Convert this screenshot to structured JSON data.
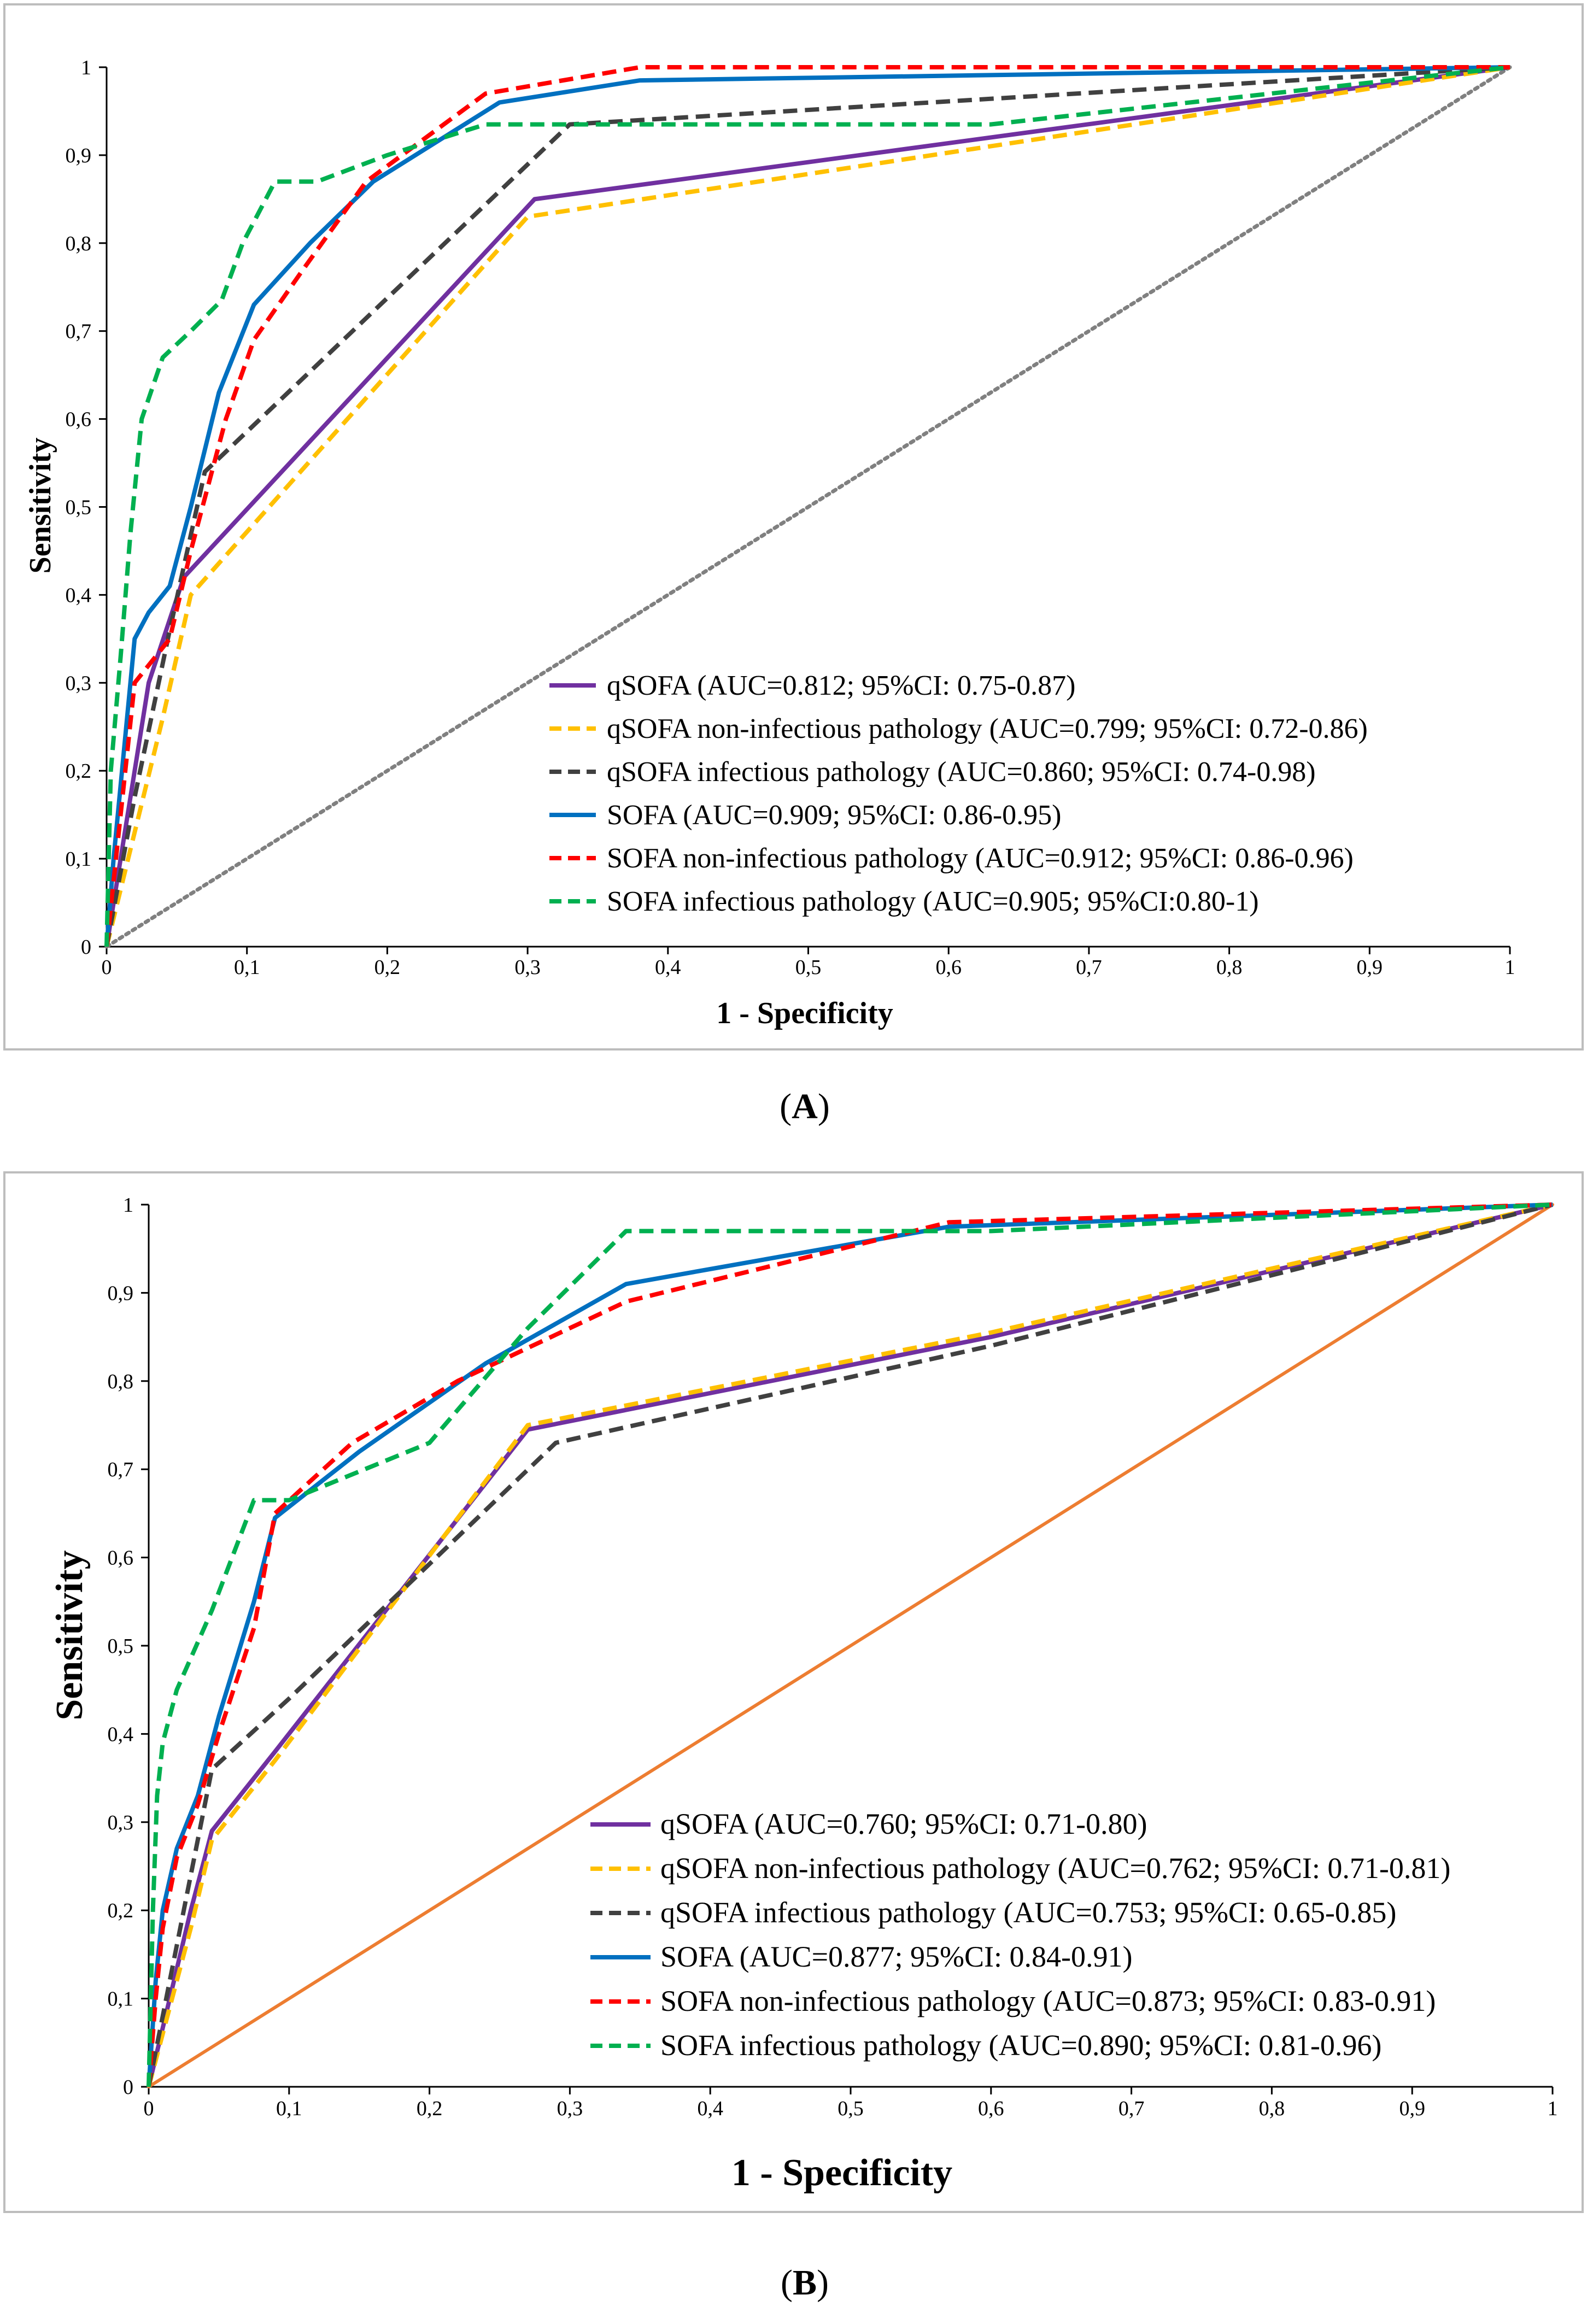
{
  "chart_data": [
    {
      "panel": "A",
      "type": "line",
      "caption_letter": "A",
      "xlabel": "1 - Specificity",
      "ylabel": "Sensitivity",
      "xlim": [
        0,
        1
      ],
      "ylim": [
        0,
        1
      ],
      "x_ticks": [
        "0",
        "0,1",
        "0,2",
        "0,3",
        "0,4",
        "0,5",
        "0,6",
        "0,7",
        "0,8",
        "0,9",
        "1"
      ],
      "y_ticks": [
        "0",
        "0,1",
        "0,2",
        "0,3",
        "0,4",
        "0,5",
        "0,6",
        "0,7",
        "0,8",
        "0,9",
        "1"
      ],
      "legend_position": "bottom-right",
      "reference": {
        "name": "reference",
        "color": "#808080",
        "style": "dotted",
        "x": [
          0,
          1
        ],
        "y": [
          0,
          1
        ]
      },
      "series": [
        {
          "name": "qSOFA",
          "label": "qSOFA (AUC=0.812; 95%CI: 0.75-0.87)",
          "color": "#7030A0",
          "style": "solid",
          "x": [
            0,
            0.015,
            0.03,
            0.055,
            0.305,
            1
          ],
          "y": [
            0,
            0.15,
            0.3,
            0.42,
            0.85,
            1
          ]
        },
        {
          "name": "qSOFA non-infectious pathology",
          "label": "qSOFA non-infectious pathology (AUC=0.799; 95%CI: 0.72-0.86)",
          "color": "#FFC000",
          "style": "dashed",
          "x": [
            0,
            0.02,
            0.04,
            0.06,
            0.3,
            1
          ],
          "y": [
            0,
            0.13,
            0.26,
            0.4,
            0.83,
            1
          ]
        },
        {
          "name": "qSOFA infectious pathology",
          "label": "qSOFA infectious pathology (AUC=0.860; 95%CI: 0.74-0.98)",
          "color": "#404040",
          "style": "dashed",
          "x": [
            0,
            0.02,
            0.045,
            0.07,
            0.33,
            1
          ],
          "y": [
            0,
            0.17,
            0.36,
            0.54,
            0.935,
            1
          ]
        },
        {
          "name": "SOFA",
          "label": "SOFA (AUC=0.909; 95%CI: 0.86-0.95)",
          "color": "#0070C0",
          "style": "solid",
          "x": [
            0,
            0.005,
            0.02,
            0.03,
            0.045,
            0.06,
            0.08,
            0.105,
            0.145,
            0.19,
            0.28,
            0.38,
            1
          ],
          "y": [
            0,
            0.1,
            0.35,
            0.38,
            0.41,
            0.5,
            0.63,
            0.73,
            0.8,
            0.87,
            0.96,
            0.985,
            1
          ]
        },
        {
          "name": "SOFA non-infectious pathology",
          "label": "SOFA non-infectious pathology (AUC=0.912; 95%CI: 0.86-0.96)",
          "color": "#FF0000",
          "style": "dashed",
          "x": [
            0,
            0.02,
            0.045,
            0.06,
            0.085,
            0.105,
            0.14,
            0.185,
            0.27,
            0.38,
            1
          ],
          "y": [
            0,
            0.3,
            0.35,
            0.45,
            0.6,
            0.69,
            0.77,
            0.87,
            0.97,
            1.0,
            1
          ]
        },
        {
          "name": "SOFA infectious pathology",
          "label": "SOFA infectious pathology (AUC=0.905; 95%CI:0.80-1)",
          "color": "#00B050",
          "style": "dashed",
          "x": [
            0,
            0.003,
            0.01,
            0.017,
            0.025,
            0.04,
            0.06,
            0.082,
            0.097,
            0.12,
            0.15,
            0.2,
            0.27,
            0.33,
            0.63,
            1
          ],
          "y": [
            0,
            0.2,
            0.33,
            0.47,
            0.6,
            0.67,
            0.7,
            0.735,
            0.8,
            0.87,
            0.87,
            0.9,
            0.935,
            0.935,
            0.935,
            1
          ]
        }
      ]
    },
    {
      "panel": "B",
      "type": "line",
      "caption_letter": "B",
      "xlabel": "1 - Specificity",
      "ylabel": "Sensitivity",
      "xlim": [
        0,
        1
      ],
      "ylim": [
        0,
        1
      ],
      "x_ticks": [
        "0",
        "0,1",
        "0,2",
        "0,3",
        "0,4",
        "0,5",
        "0,6",
        "0,7",
        "0,8",
        "0,9",
        "1"
      ],
      "y_ticks": [
        "0",
        "0,1",
        "0,2",
        "0,3",
        "0,4",
        "0,5",
        "0,6",
        "0,7",
        "0,8",
        "0,9",
        "1"
      ],
      "legend_position": "bottom-right",
      "reference": {
        "name": "reference",
        "color": "#ED7D31",
        "style": "solid",
        "x": [
          0,
          1
        ],
        "y": [
          0,
          1
        ]
      },
      "series": [
        {
          "name": "qSOFA",
          "label": "qSOFA (AUC=0.760; 95%CI: 0.71-0.80)",
          "color": "#7030A0",
          "style": "solid",
          "x": [
            0,
            0.015,
            0.03,
            0.045,
            0.09,
            0.27,
            0.6,
            1
          ],
          "y": [
            0,
            0.1,
            0.2,
            0.29,
            0.38,
            0.745,
            0.85,
            1
          ]
        },
        {
          "name": "qSOFA non-infectious pathology",
          "label": "qSOFA non-infectious pathology (AUC=0.762; 95%CI: 0.71-0.81)",
          "color": "#FFC000",
          "style": "dashed",
          "x": [
            0,
            0.015,
            0.03,
            0.045,
            0.09,
            0.27,
            0.6,
            1
          ],
          "y": [
            0,
            0.09,
            0.18,
            0.28,
            0.37,
            0.75,
            0.855,
            1
          ]
        },
        {
          "name": "qSOFA infectious pathology",
          "label": "qSOFA infectious pathology (AUC=0.753; 95%CI: 0.65-0.85)",
          "color": "#404040",
          "style": "dashed",
          "x": [
            0,
            0.015,
            0.03,
            0.045,
            0.1,
            0.29,
            0.6,
            1
          ],
          "y": [
            0,
            0.12,
            0.24,
            0.36,
            0.44,
            0.73,
            0.84,
            1
          ]
        },
        {
          "name": "SOFA",
          "label": "SOFA (AUC=0.877; 95%CI: 0.84-0.91)",
          "color": "#0070C0",
          "style": "solid",
          "x": [
            0,
            0.005,
            0.01,
            0.02,
            0.035,
            0.05,
            0.075,
            0.09,
            0.15,
            0.24,
            0.34,
            0.57,
            1
          ],
          "y": [
            0,
            0.12,
            0.2,
            0.27,
            0.33,
            0.42,
            0.55,
            0.645,
            0.72,
            0.82,
            0.91,
            0.975,
            1
          ]
        },
        {
          "name": "SOFA non-infectious pathology",
          "label": "SOFA non-infectious pathology (AUC=0.873; 95%CI: 0.83-0.91)",
          "color": "#FF0000",
          "style": "dashed",
          "x": [
            0,
            0.005,
            0.01,
            0.02,
            0.035,
            0.05,
            0.075,
            0.09,
            0.145,
            0.22,
            0.34,
            0.57,
            1
          ],
          "y": [
            0,
            0.1,
            0.18,
            0.26,
            0.32,
            0.4,
            0.52,
            0.65,
            0.73,
            0.8,
            0.89,
            0.98,
            1
          ]
        },
        {
          "name": "SOFA infectious pathology",
          "label": "SOFA infectious pathology (AUC=0.890; 95%CI: 0.81-0.96)",
          "color": "#00B050",
          "style": "dashed",
          "x": [
            0,
            0.003,
            0.006,
            0.01,
            0.02,
            0.045,
            0.075,
            0.1,
            0.2,
            0.27,
            0.34,
            0.6,
            1
          ],
          "y": [
            0,
            0.2,
            0.33,
            0.39,
            0.45,
            0.54,
            0.665,
            0.665,
            0.73,
            0.86,
            0.97,
            0.97,
            1
          ]
        }
      ]
    }
  ]
}
